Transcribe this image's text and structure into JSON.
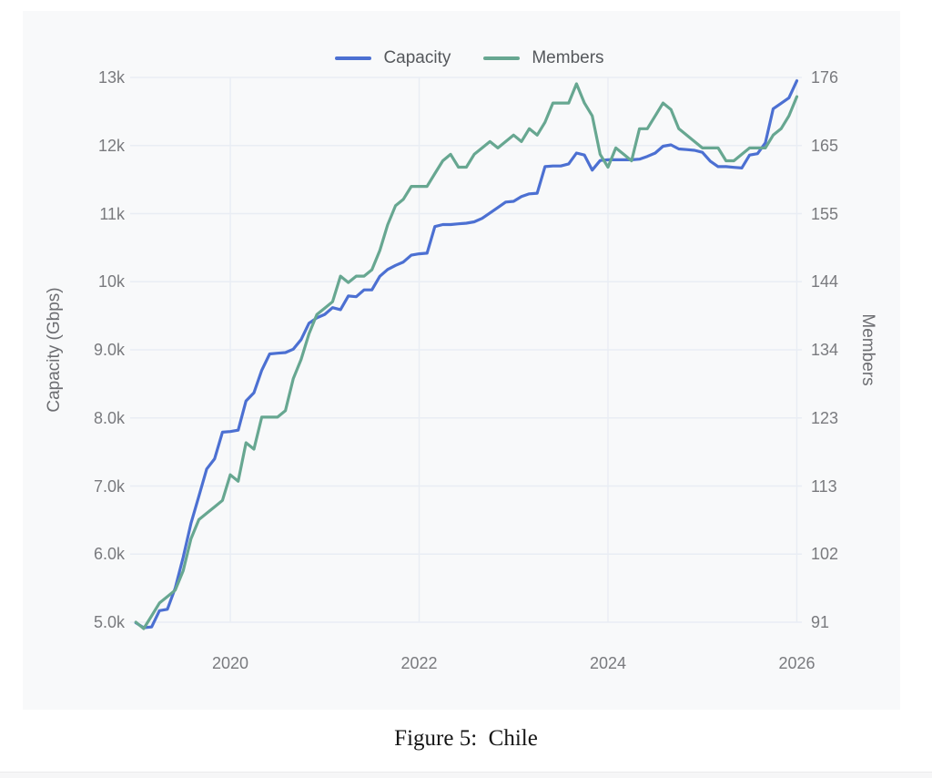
{
  "page": {
    "caption": "Figure 5:  Chile"
  },
  "chart_data": {
    "type": "line",
    "title": "",
    "grid": true,
    "legend_position": "top",
    "x_frequency": "monthly",
    "x_tick_labels": [
      "2020",
      "2022",
      "2024",
      "2026"
    ],
    "left_axis": {
      "title": "Capacity (Gbps)",
      "tick_labels": [
        "13k",
        "12k",
        "11k",
        "10k",
        "9.0k",
        "8.0k",
        "7.0k",
        "6.0k",
        "5.0k"
      ],
      "tick_values": [
        13000,
        12000,
        11000,
        10000,
        9000,
        8000,
        7000,
        6000,
        5000
      ],
      "range": [
        5000,
        13000
      ]
    },
    "right_axis": {
      "title": "Members",
      "tick_labels": [
        "176",
        "165",
        "155",
        "144",
        "134",
        "123",
        "113",
        "102",
        "91"
      ],
      "tick_values": [
        176,
        165.4,
        154.8,
        144.1,
        133.5,
        122.9,
        112.3,
        101.6,
        91
      ],
      "range": [
        91,
        176
      ]
    },
    "x": [
      "2019-01",
      "2019-02",
      "2019-03",
      "2019-04",
      "2019-05",
      "2019-06",
      "2019-07",
      "2019-08",
      "2019-09",
      "2019-10",
      "2019-11",
      "2019-12",
      "2020-01",
      "2020-02",
      "2020-03",
      "2020-04",
      "2020-05",
      "2020-06",
      "2020-07",
      "2020-08",
      "2020-09",
      "2020-10",
      "2020-11",
      "2020-12",
      "2021-01",
      "2021-02",
      "2021-03",
      "2021-04",
      "2021-05",
      "2021-06",
      "2021-07",
      "2021-08",
      "2021-09",
      "2021-10",
      "2021-11",
      "2021-12",
      "2022-01",
      "2022-02",
      "2022-03",
      "2022-04",
      "2022-05",
      "2022-06",
      "2022-07",
      "2022-08",
      "2022-09",
      "2022-10",
      "2022-11",
      "2022-12",
      "2023-01",
      "2023-02",
      "2023-03",
      "2023-04",
      "2023-05",
      "2023-06",
      "2023-07",
      "2023-08",
      "2023-09",
      "2023-10",
      "2023-11",
      "2023-12",
      "2024-01",
      "2024-02",
      "2024-03",
      "2024-04",
      "2024-05",
      "2024-06",
      "2024-07",
      "2024-08",
      "2024-09",
      "2024-10",
      "2024-11",
      "2024-12",
      "2025-01",
      "2025-02",
      "2025-03",
      "2025-04",
      "2025-05",
      "2025-06",
      "2025-07",
      "2025-08",
      "2025-09",
      "2025-10",
      "2025-11",
      "2025-12",
      "2026-01"
    ],
    "series": [
      {
        "name": "Capacity",
        "axis": "left",
        "color": "#4c70d2",
        "values": [
          4990,
          4920,
          4930,
          5170,
          5190,
          5500,
          5950,
          6450,
          6850,
          7250,
          7400,
          7790,
          7800,
          7820,
          8250,
          8370,
          8700,
          8940,
          8950,
          8960,
          9010,
          9150,
          9390,
          9470,
          9520,
          9620,
          9590,
          9790,
          9780,
          9880,
          9880,
          10080,
          10180,
          10240,
          10290,
          10390,
          10410,
          10420,
          10810,
          10840,
          10840,
          10850,
          10860,
          10880,
          10930,
          11010,
          11090,
          11170,
          11180,
          11250,
          11290,
          11300,
          11690,
          11700,
          11700,
          11730,
          11890,
          11860,
          11640,
          11780,
          11790,
          11790,
          11790,
          11790,
          11800,
          11840,
          11890,
          11990,
          12010,
          11950,
          11940,
          11930,
          11900,
          11770,
          11690,
          11690,
          11680,
          11670,
          11860,
          11880,
          12040,
          12540,
          12620,
          12700,
          12950
        ]
      },
      {
        "name": "Members",
        "axis": "right",
        "color": "#67a791",
        "values": [
          91,
          90,
          92,
          94,
          95,
          96,
          99,
          104,
          107,
          108,
          109,
          110,
          114,
          113,
          119,
          118,
          123,
          123,
          123,
          124,
          129,
          132,
          136,
          139,
          140,
          141,
          145,
          144,
          145,
          145,
          146,
          149,
          153,
          156,
          157,
          159,
          159,
          159,
          161,
          163,
          164,
          162,
          162,
          164,
          165,
          166,
          165,
          166,
          167,
          166,
          168,
          167,
          169,
          172,
          172,
          172,
          175,
          172,
          170,
          164,
          162,
          165,
          164,
          163,
          168,
          168,
          170,
          172,
          171,
          168,
          167,
          166,
          165,
          165,
          165,
          163,
          163,
          164,
          165,
          165,
          165,
          167,
          168,
          170,
          173
        ]
      }
    ]
  }
}
